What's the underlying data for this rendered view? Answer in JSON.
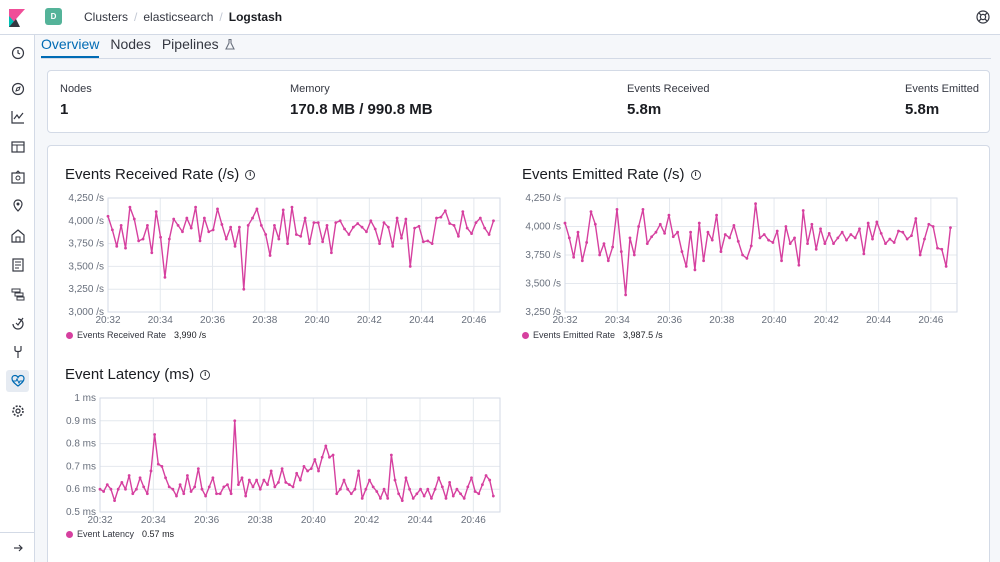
{
  "header": {
    "space_initial": "D",
    "breadcrumbs": [
      "Clusters",
      "elasticsearch",
      "Logstash"
    ]
  },
  "tabs": [
    "Overview",
    "Nodes",
    "Pipelines"
  ],
  "stats": {
    "nodes_label": "Nodes",
    "nodes_value": "1",
    "memory_label": "Memory",
    "memory_value": "170.8 MB / 990.8 MB",
    "received_label": "Events Received",
    "received_value": "5.8m",
    "emitted_label": "Events Emitted",
    "emitted_value": "5.8m"
  },
  "colors": {
    "accent": "#006bb4",
    "series": "#d6409f"
  },
  "chart_data": [
    {
      "type": "line",
      "title": "Events Received Rate (/s)",
      "x_ticks": [
        "20:32",
        "20:34",
        "20:36",
        "20:38",
        "20:40",
        "20:42",
        "20:44",
        "20:46"
      ],
      "x_range": [
        0,
        15
      ],
      "y_ticks": [
        "4,250 /s",
        "4,000 /s",
        "3,750 /s",
        "3,500 /s",
        "3,250 /s",
        "3,000 /s"
      ],
      "y_tick_values": [
        4250,
        4000,
        3750,
        3500,
        3250,
        3000
      ],
      "ylim": [
        3000,
        4250
      ],
      "legend": "Events Received Rate",
      "legend_value": "3,990 /s",
      "y": [
        4050,
        3900,
        3720,
        3950,
        3700,
        4150,
        4020,
        3780,
        3800,
        3950,
        3650,
        4100,
        3820,
        3380,
        3800,
        4020,
        3950,
        3880,
        4030,
        3920,
        4150,
        3780,
        4030,
        3880,
        3900,
        4130,
        3960,
        3800,
        3930,
        3720,
        3930,
        3250,
        3950,
        4030,
        4130,
        3950,
        3850,
        3620,
        3950,
        3800,
        4120,
        3750,
        4150,
        3850,
        3830,
        4030,
        3750,
        3980,
        3980,
        3770,
        3950,
        3650,
        3980,
        4000,
        3910,
        3850,
        3930,
        3970,
        3930,
        3880,
        4000,
        3910,
        3750,
        3980,
        3930,
        3720,
        4030,
        3810,
        4020,
        3500,
        3920,
        3940,
        3770,
        3780,
        3750,
        4030,
        4040,
        4110,
        3970,
        3950,
        3830,
        4100,
        3920,
        3860,
        3980,
        4030,
        3920,
        3850,
        4000
      ]
    },
    {
      "type": "line",
      "title": "Events Emitted Rate (/s)",
      "x_ticks": [
        "20:32",
        "20:34",
        "20:36",
        "20:38",
        "20:40",
        "20:42",
        "20:44",
        "20:46"
      ],
      "x_range": [
        0,
        15
      ],
      "y_ticks": [
        "4,250 /s",
        "4,000 /s",
        "3,750 /s",
        "3,500 /s",
        "3,250 /s"
      ],
      "y_tick_values": [
        4250,
        4000,
        3750,
        3500,
        3250
      ],
      "ylim": [
        3250,
        4250
      ],
      "legend": "Events Emitted Rate",
      "legend_value": "3,987.5 /s",
      "y": [
        4030,
        3900,
        3730,
        3950,
        3700,
        3860,
        4130,
        4020,
        3750,
        3850,
        3700,
        3820,
        4150,
        3780,
        3400,
        3900,
        3750,
        4000,
        4150,
        3850,
        3910,
        3950,
        4020,
        3940,
        4100,
        3910,
        3950,
        3780,
        3650,
        3950,
        3620,
        4030,
        3700,
        3950,
        3880,
        4100,
        3780,
        3930,
        3900,
        4010,
        3870,
        3750,
        3720,
        3830,
        4200,
        3900,
        3930,
        3880,
        3860,
        3960,
        3700,
        4000,
        3850,
        3900,
        3660,
        4140,
        3850,
        4020,
        3800,
        3980,
        3850,
        3940,
        3850,
        3900,
        3950,
        3880,
        3930,
        3900,
        3980,
        3760,
        4030,
        3890,
        4040,
        3940,
        3850,
        3890,
        3860,
        3960,
        3950,
        3890,
        3920,
        4070,
        3750,
        3890,
        4020,
        4000,
        3810,
        3800,
        3650,
        3990
      ]
    },
    {
      "type": "line",
      "title": "Event Latency (ms)",
      "x_ticks": [
        "20:32",
        "20:34",
        "20:36",
        "20:38",
        "20:40",
        "20:42",
        "20:44",
        "20:46"
      ],
      "x_range": [
        0,
        15
      ],
      "y_ticks": [
        "1 ms",
        "0.9 ms",
        "0.8 ms",
        "0.7 ms",
        "0.6 ms",
        "0.5 ms"
      ],
      "y_tick_values": [
        1,
        0.9,
        0.8,
        0.7,
        0.6,
        0.5
      ],
      "ylim": [
        0.5,
        1
      ],
      "legend": "Event Latency",
      "legend_value": "0.57 ms",
      "y": [
        0.6,
        0.59,
        0.62,
        0.6,
        0.55,
        0.6,
        0.63,
        0.6,
        0.66,
        0.58,
        0.6,
        0.65,
        0.61,
        0.58,
        0.68,
        0.84,
        0.71,
        0.7,
        0.65,
        0.61,
        0.6,
        0.57,
        0.62,
        0.58,
        0.66,
        0.59,
        0.61,
        0.69,
        0.6,
        0.57,
        0.61,
        0.65,
        0.58,
        0.58,
        0.61,
        0.62,
        0.58,
        0.9,
        0.62,
        0.65,
        0.57,
        0.64,
        0.61,
        0.64,
        0.6,
        0.64,
        0.62,
        0.68,
        0.61,
        0.63,
        0.69,
        0.63,
        0.62,
        0.61,
        0.67,
        0.64,
        0.7,
        0.68,
        0.69,
        0.73,
        0.68,
        0.74,
        0.79,
        0.74,
        0.75,
        0.58,
        0.6,
        0.64,
        0.6,
        0.58,
        0.6,
        0.68,
        0.56,
        0.6,
        0.64,
        0.61,
        0.59,
        0.56,
        0.6,
        0.56,
        0.75,
        0.64,
        0.58,
        0.55,
        0.65,
        0.6,
        0.56,
        0.58,
        0.6,
        0.57,
        0.6,
        0.56,
        0.6,
        0.65,
        0.61,
        0.56,
        0.63,
        0.57,
        0.6,
        0.58,
        0.56,
        0.61,
        0.65,
        0.59,
        0.58,
        0.62,
        0.66,
        0.64,
        0.57
      ]
    }
  ]
}
